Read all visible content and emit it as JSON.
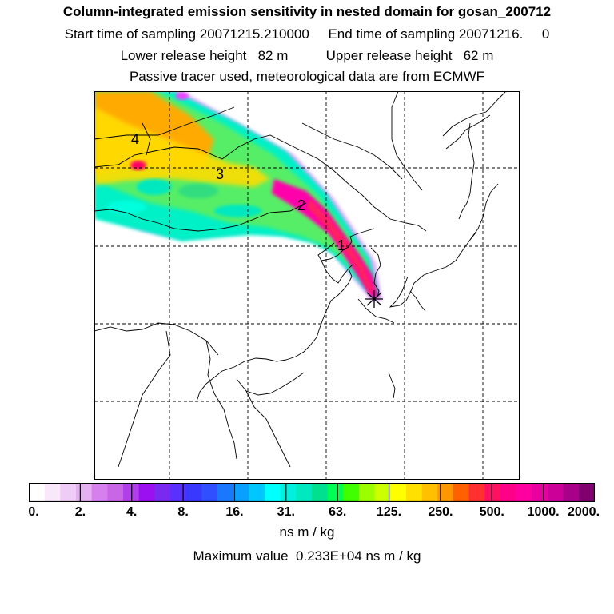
{
  "header": {
    "title": "Column-integrated emission sensitivity in nested domain for gosan_200712",
    "start_label": "Start time of sampling 20071215.210000",
    "end_label": "End time of sampling 20071216.     0",
    "lower_label": "Lower release height   82 m",
    "upper_label": "Upper release height   62 m",
    "tracer_line": "Passive tracer used, meteorological data are from ECMWF"
  },
  "map": {
    "markers": [
      "4",
      "3",
      "2",
      "1"
    ],
    "release_site": "star-marker",
    "plume_colors": [
      "#ff00cc",
      "#ff0080",
      "#ffcc00",
      "#ff8800",
      "#00ffcc",
      "#33cc66",
      "#ccff00"
    ]
  },
  "colorbar": {
    "colors": [
      "#ffffff",
      "#f8e8fa",
      "#efccf5",
      "#e4b0f0",
      "#d680ee",
      "#c866e6",
      "#b040e8",
      "#9a10f0",
      "#7a2af0",
      "#5a30ff",
      "#3838ff",
      "#3050ff",
      "#1a78ff",
      "#0aa0ff",
      "#00c8ff",
      "#00ffff",
      "#00f0e0",
      "#00e8c0",
      "#00e090",
      "#00ff55",
      "#40ff00",
      "#9cff00",
      "#ccff00",
      "#ffff00",
      "#ffe000",
      "#ffc000",
      "#ff9800",
      "#ff6000",
      "#ff3030",
      "#ff1060",
      "#ff0088",
      "#ff00a0",
      "#e800a0",
      "#cc0099",
      "#a80088",
      "#800070"
    ],
    "ticks": [
      "0.",
      "2.",
      "4.",
      "8.",
      "16.",
      "31.",
      "63.",
      "125.",
      "250.",
      "500.",
      "1000.",
      "2000."
    ],
    "units": "ns m / kg",
    "max_value": "Maximum value  0.233E+04 ns m / kg"
  }
}
